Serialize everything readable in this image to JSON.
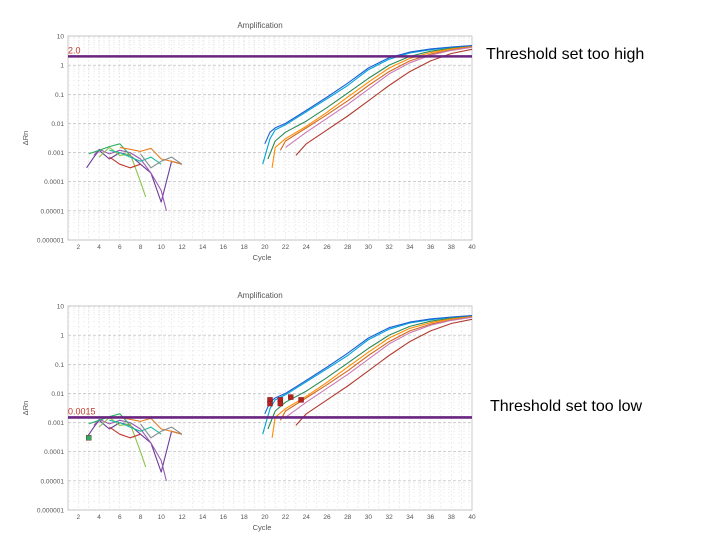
{
  "page": {
    "annotation_top": "Threshold set too high",
    "annotation_bottom": "Threshold set too low"
  },
  "colors": {
    "threshold": "#6a2580",
    "threshold_label": "#c0392b",
    "grid": "#d3d3d3",
    "axis_text": "#555555",
    "cq_marker": "#b22222"
  },
  "chart_data": [
    {
      "type": "line",
      "title": "Amplification",
      "xlabel": "Cycle",
      "ylabel": "ΔRn",
      "y_scale": "log",
      "xlim": [
        1,
        40
      ],
      "ylim": [
        1e-06,
        10
      ],
      "x_ticks": [
        2,
        4,
        6,
        8,
        10,
        12,
        14,
        16,
        18,
        20,
        22,
        24,
        26,
        28,
        30,
        32,
        34,
        36,
        38,
        40
      ],
      "y_ticks": [
        {
          "value": 10,
          "label": "10"
        },
        {
          "value": 1,
          "label": "1"
        },
        {
          "value": 0.1,
          "label": "0.1"
        },
        {
          "value": 0.01,
          "label": "0.01"
        },
        {
          "value": 0.001,
          "label": "0.001"
        },
        {
          "value": 0.0001,
          "label": "0.0001"
        },
        {
          "value": 1e-05,
          "label": "0.00001"
        },
        {
          "value": 1e-06,
          "label": "0.000001"
        }
      ],
      "grid": true,
      "threshold": {
        "value": 2.0,
        "label": "2.0"
      },
      "cq_markers": [],
      "series": [
        {
          "color": "#00a3d9",
          "x": [
            19.8,
            20.5,
            21,
            22,
            24,
            26,
            28,
            30,
            32,
            34,
            36,
            38,
            40
          ],
          "y": [
            0.0004,
            0.003,
            0.006,
            0.009,
            0.025,
            0.07,
            0.2,
            0.7,
            1.6,
            2.6,
            3.4,
            4.1,
            4.6
          ]
        },
        {
          "color": "#1a5fd6",
          "x": [
            20,
            20.5,
            21,
            22,
            24,
            26,
            28,
            30,
            32,
            34,
            36,
            38,
            40
          ],
          "y": [
            0.002,
            0.005,
            0.007,
            0.01,
            0.028,
            0.08,
            0.24,
            0.8,
            1.8,
            2.8,
            3.6,
            4.2,
            4.7
          ]
        },
        {
          "color": "#2e8b57",
          "x": [
            20.3,
            21,
            22,
            24,
            26,
            28,
            30,
            32,
            34,
            36,
            38,
            40
          ],
          "y": [
            0.0006,
            0.0025,
            0.005,
            0.012,
            0.035,
            0.11,
            0.35,
            1.0,
            2.0,
            3.0,
            3.8,
            4.4
          ]
        },
        {
          "color": "#ff8c00",
          "x": [
            20.7,
            21,
            22,
            24,
            26,
            28,
            30,
            32,
            34,
            36,
            38,
            40
          ],
          "y": [
            0.0003,
            0.0015,
            0.003,
            0.008,
            0.024,
            0.08,
            0.26,
            0.8,
            1.7,
            2.7,
            3.6,
            4.3
          ]
        },
        {
          "color": "#d2691e",
          "x": [
            21.5,
            22,
            24,
            26,
            28,
            30,
            32,
            34,
            36,
            38,
            40
          ],
          "y": [
            0.0012,
            0.0025,
            0.007,
            0.02,
            0.06,
            0.2,
            0.6,
            1.4,
            2.4,
            3.3,
            4.2
          ]
        },
        {
          "color": "#c97bb6",
          "x": [
            22,
            24,
            26,
            28,
            30,
            32,
            34,
            36,
            38,
            40
          ],
          "y": [
            0.0015,
            0.005,
            0.015,
            0.045,
            0.15,
            0.5,
            1.2,
            2.2,
            3.2,
            4.1
          ]
        },
        {
          "color": "#b03a2e",
          "x": [
            23,
            24,
            26,
            28,
            30,
            32,
            34,
            36,
            38,
            40
          ],
          "y": [
            0.0008,
            0.002,
            0.006,
            0.018,
            0.06,
            0.2,
            0.6,
            1.4,
            2.5,
            3.5
          ]
        },
        {
          "color": "#6b3e99",
          "x": [
            2.8,
            3.5,
            4,
            5,
            6,
            7,
            8,
            9,
            10,
            11,
            12
          ],
          "y": [
            0.0003,
            0.0007,
            0.0012,
            0.0006,
            0.001,
            0.0008,
            0.0004,
            0.0002,
            2e-05,
            0.0005,
            0.0004
          ]
        },
        {
          "color": "#9b59b6",
          "x": [
            3.5,
            4,
            5,
            6,
            7,
            8,
            9,
            10,
            10.5
          ],
          "y": [
            0.0008,
            0.0013,
            0.0009,
            0.0012,
            0.001,
            0.0006,
            0.0002,
            5e-05,
            1e-05
          ]
        },
        {
          "color": "#27ae60",
          "x": [
            3,
            4,
            5,
            6,
            7
          ],
          "y": [
            0.0009,
            0.0012,
            0.0016,
            0.002,
            0.0008
          ]
        },
        {
          "color": "#8bc34a",
          "x": [
            4,
            5,
            6,
            7,
            8,
            8.5
          ],
          "y": [
            0.0007,
            0.0015,
            0.0008,
            0.0009,
            0.0001,
            3e-05
          ]
        },
        {
          "color": "#1abc9c",
          "x": [
            5,
            6,
            7,
            8,
            9,
            10
          ],
          "y": [
            0.0012,
            0.001,
            0.0007,
            0.0005,
            0.0007,
            0.0004
          ]
        },
        {
          "color": "#e67e22",
          "x": [
            6,
            7,
            8,
            9,
            10,
            11,
            12
          ],
          "y": [
            0.0015,
            0.0013,
            0.0011,
            0.0014,
            0.0006,
            0.0005,
            0.0004
          ]
        },
        {
          "color": "#c0392b",
          "x": [
            5,
            6,
            7,
            8
          ],
          "y": [
            0.0007,
            0.0004,
            0.0003,
            0.0004
          ]
        },
        {
          "color": "#7f8c8d",
          "x": [
            8,
            9,
            10,
            11,
            12
          ],
          "y": [
            0.0009,
            0.0003,
            0.0005,
            0.0007,
            0.0004
          ]
        }
      ]
    },
    {
      "type": "line",
      "title": "Amplification",
      "xlabel": "Cycle",
      "ylabel": "ΔRn",
      "y_scale": "log",
      "xlim": [
        1,
        40
      ],
      "ylim": [
        1e-06,
        10
      ],
      "x_ticks": [
        2,
        4,
        6,
        8,
        10,
        12,
        14,
        16,
        18,
        20,
        22,
        24,
        26,
        28,
        30,
        32,
        34,
        36,
        38,
        40
      ],
      "y_ticks": [
        {
          "value": 10,
          "label": "10"
        },
        {
          "value": 1,
          "label": "1"
        },
        {
          "value": 0.1,
          "label": "0.1"
        },
        {
          "value": 0.01,
          "label": "0.01"
        },
        {
          "value": 0.001,
          "label": "0.001"
        },
        {
          "value": 0.0001,
          "label": "0.0001"
        },
        {
          "value": 1e-05,
          "label": "0.00001"
        },
        {
          "value": 1e-06,
          "label": "0.000001"
        }
      ],
      "grid": true,
      "threshold": {
        "value": 0.0015,
        "label": "0.0015"
      },
      "cq_markers": [
        {
          "x": 3.0,
          "y": 0.0003,
          "color": "#27ae60"
        },
        {
          "x": 20.5,
          "y": 0.006,
          "color": "#b22222"
        },
        {
          "x": 20.5,
          "y": 0.0045,
          "color": "#b22222"
        },
        {
          "x": 21.5,
          "y": 0.006,
          "color": "#b22222"
        },
        {
          "x": 21.5,
          "y": 0.0045,
          "color": "#b22222"
        },
        {
          "x": 22.5,
          "y": 0.0075,
          "color": "#b22222"
        },
        {
          "x": 23.5,
          "y": 0.006,
          "color": "#b22222"
        }
      ],
      "series": [
        {
          "color": "#00a3d9",
          "x": [
            19.8,
            20.5,
            21,
            22,
            24,
            26,
            28,
            30,
            32,
            34,
            36,
            38,
            40
          ],
          "y": [
            0.0004,
            0.003,
            0.006,
            0.009,
            0.025,
            0.07,
            0.2,
            0.7,
            1.6,
            2.6,
            3.4,
            4.1,
            4.6
          ]
        },
        {
          "color": "#1a5fd6",
          "x": [
            20,
            20.5,
            21,
            22,
            24,
            26,
            28,
            30,
            32,
            34,
            36,
            38,
            40
          ],
          "y": [
            0.002,
            0.005,
            0.007,
            0.01,
            0.028,
            0.08,
            0.24,
            0.8,
            1.8,
            2.8,
            3.6,
            4.2,
            4.7
          ]
        },
        {
          "color": "#2e8b57",
          "x": [
            20.3,
            21,
            22,
            24,
            26,
            28,
            30,
            32,
            34,
            36,
            38,
            40
          ],
          "y": [
            0.0006,
            0.0025,
            0.005,
            0.012,
            0.035,
            0.11,
            0.35,
            1.0,
            2.0,
            3.0,
            3.8,
            4.4
          ]
        },
        {
          "color": "#ff8c00",
          "x": [
            20.7,
            21,
            22,
            24,
            26,
            28,
            30,
            32,
            34,
            36,
            38,
            40
          ],
          "y": [
            0.0003,
            0.0015,
            0.003,
            0.008,
            0.024,
            0.08,
            0.26,
            0.8,
            1.7,
            2.7,
            3.6,
            4.3
          ]
        },
        {
          "color": "#d2691e",
          "x": [
            21.5,
            22,
            24,
            26,
            28,
            30,
            32,
            34,
            36,
            38,
            40
          ],
          "y": [
            0.0012,
            0.0025,
            0.007,
            0.02,
            0.06,
            0.2,
            0.6,
            1.4,
            2.4,
            3.3,
            4.2
          ]
        },
        {
          "color": "#c97bb6",
          "x": [
            22,
            24,
            26,
            28,
            30,
            32,
            34,
            36,
            38,
            40
          ],
          "y": [
            0.0015,
            0.005,
            0.015,
            0.045,
            0.15,
            0.5,
            1.2,
            2.2,
            3.2,
            4.1
          ]
        },
        {
          "color": "#b03a2e",
          "x": [
            23,
            24,
            26,
            28,
            30,
            32,
            34,
            36,
            38,
            40
          ],
          "y": [
            0.0008,
            0.002,
            0.006,
            0.018,
            0.06,
            0.2,
            0.6,
            1.4,
            2.5,
            3.5
          ]
        },
        {
          "color": "#6b3e99",
          "x": [
            2.8,
            3.5,
            4,
            5,
            6,
            7,
            8,
            9,
            10,
            11,
            12
          ],
          "y": [
            0.0003,
            0.0007,
            0.0012,
            0.0006,
            0.001,
            0.0008,
            0.0004,
            0.0002,
            2e-05,
            0.0005,
            0.0004
          ]
        },
        {
          "color": "#9b59b6",
          "x": [
            3.5,
            4,
            5,
            6,
            7,
            8,
            9,
            10,
            10.5
          ],
          "y": [
            0.0008,
            0.0013,
            0.0009,
            0.0012,
            0.001,
            0.0006,
            0.0002,
            5e-05,
            1e-05
          ]
        },
        {
          "color": "#27ae60",
          "x": [
            3,
            4,
            5,
            6,
            7
          ],
          "y": [
            0.0009,
            0.0012,
            0.0016,
            0.002,
            0.0008
          ]
        },
        {
          "color": "#8bc34a",
          "x": [
            4,
            5,
            6,
            7,
            8,
            8.5
          ],
          "y": [
            0.0007,
            0.0015,
            0.0008,
            0.0009,
            0.0001,
            3e-05
          ]
        },
        {
          "color": "#1abc9c",
          "x": [
            5,
            6,
            7,
            8,
            9,
            10
          ],
          "y": [
            0.0012,
            0.001,
            0.0007,
            0.0005,
            0.0007,
            0.0004
          ]
        },
        {
          "color": "#e67e22",
          "x": [
            6,
            7,
            8,
            9,
            10,
            11,
            12
          ],
          "y": [
            0.0015,
            0.0013,
            0.0011,
            0.0014,
            0.0006,
            0.0005,
            0.0004
          ]
        },
        {
          "color": "#c0392b",
          "x": [
            5,
            6,
            7,
            8
          ],
          "y": [
            0.0007,
            0.0004,
            0.0003,
            0.0004
          ]
        },
        {
          "color": "#7f8c8d",
          "x": [
            8,
            9,
            10,
            11,
            12
          ],
          "y": [
            0.0009,
            0.0003,
            0.0005,
            0.0007,
            0.0004
          ]
        }
      ]
    }
  ]
}
